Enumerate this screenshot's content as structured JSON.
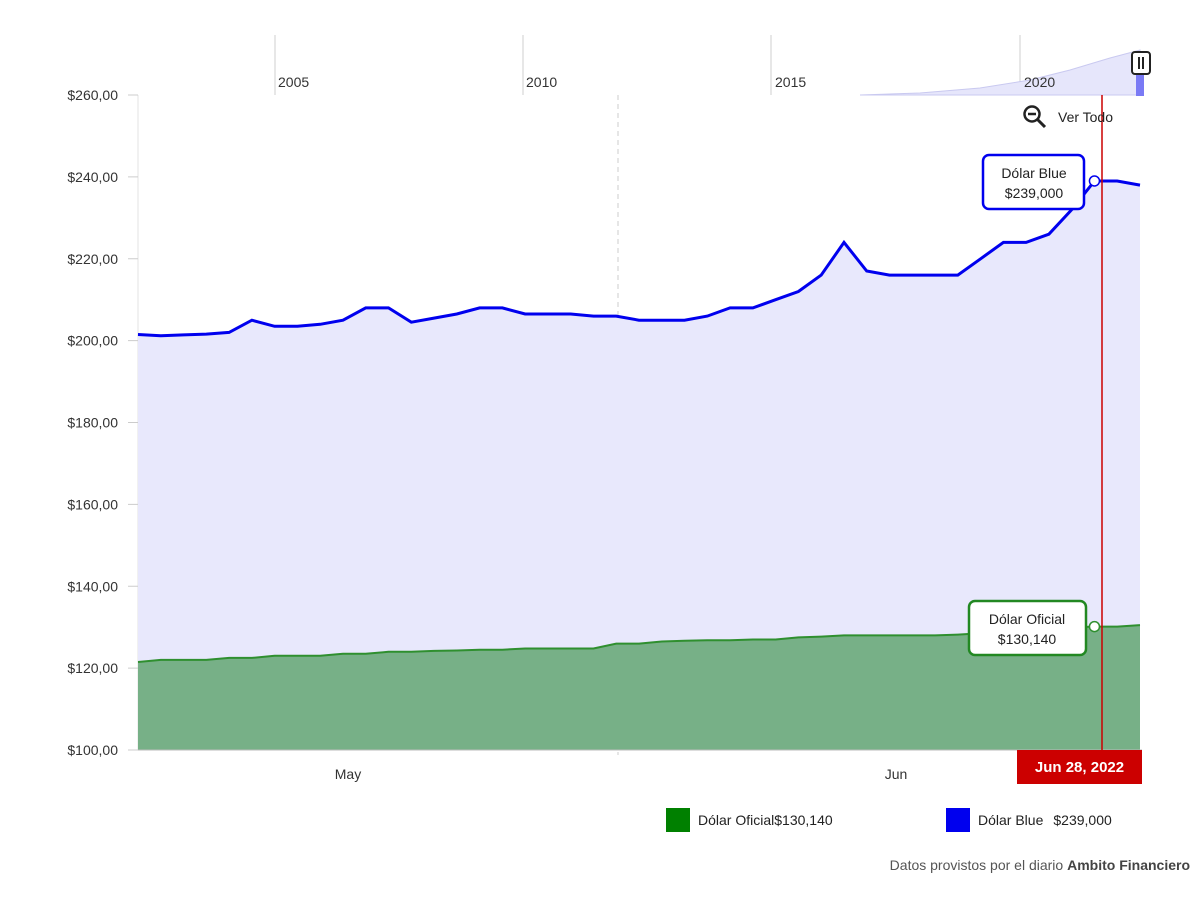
{
  "chart_data": {
    "type": "area",
    "title": "",
    "xlabel": "",
    "ylabel": "",
    "ylim": [
      100,
      260
    ],
    "y_ticks": [
      "$100,00",
      "$120,00",
      "$140,00",
      "$160,00",
      "$180,00",
      "$200,00",
      "$220,00",
      "$240,00",
      "$260,00"
    ],
    "x_tick_labels": [
      "May",
      "Jun"
    ],
    "navigator_labels": [
      "2005",
      "2010",
      "2015",
      "2020"
    ],
    "grid": false,
    "legend_position": "bottom-right",
    "series": [
      {
        "name": "Dólar Blue",
        "color": "#0000ee",
        "values": [
          201.5,
          201.2,
          201.4,
          201.6,
          202.0,
          205.0,
          203.5,
          203.5,
          204.0,
          205.0,
          208.0,
          208.0,
          204.5,
          205.5,
          206.5,
          208.0,
          208.0,
          206.5,
          206.5,
          206.5,
          206.0,
          206.0,
          205.0,
          205.0,
          205.0,
          206.0,
          208.0,
          208.0,
          210.0,
          212.0,
          216.0,
          224.0,
          217.0,
          216.0,
          216.0,
          216.0,
          216.0,
          220.0,
          224.0,
          224.0,
          226.0,
          232.0,
          239.0,
          239.0,
          238.0
        ]
      },
      {
        "name": "Dólar Oficial",
        "color": "#008000",
        "values": [
          121.5,
          122.0,
          122.0,
          122.0,
          122.5,
          122.5,
          123.0,
          123.0,
          123.0,
          123.5,
          123.5,
          124.0,
          124.0,
          124.2,
          124.3,
          124.5,
          124.5,
          124.8,
          124.8,
          124.8,
          124.8,
          126.0,
          126.0,
          126.5,
          126.7,
          126.8,
          126.8,
          127.0,
          127.0,
          127.5,
          127.7,
          128.0,
          128.0,
          128.0,
          128.0,
          128.0,
          128.2,
          128.5,
          129.0,
          129.5,
          129.8,
          130.0,
          130.14,
          130.14,
          130.5
        ]
      }
    ]
  },
  "tooltip_blue": {
    "name": "Dólar Blue",
    "value": "$239,000"
  },
  "tooltip_oficial": {
    "name": "Dólar Oficial",
    "value": "$130,140"
  },
  "crosshair_date": "Jun 28, 2022",
  "zoom_button": {
    "label": "Ver Todo"
  },
  "legend": {
    "oficial": {
      "name": "Dólar Oficial",
      "value": "$130,140",
      "color": "#008000"
    },
    "blue": {
      "name": "Dólar Blue",
      "value": "$239,000",
      "color": "#0000ee"
    }
  },
  "credit": {
    "prefix": "Datos provistos por el diario",
    "source": "Ambito Financiero"
  }
}
